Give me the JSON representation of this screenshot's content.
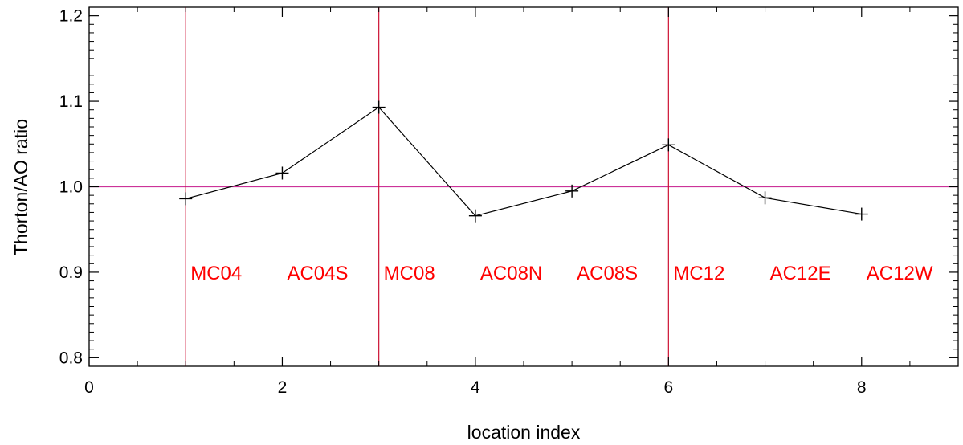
{
  "chart_data": {
    "type": "line",
    "title": "",
    "xlabel": "location index",
    "ylabel": "Thorton/AO ratio",
    "xlim": [
      0,
      9
    ],
    "ylim": [
      0.79,
      1.21
    ],
    "xticks": [
      0,
      2,
      4,
      6,
      8
    ],
    "xtick_labels": [
      "0",
      "2",
      "4",
      "6",
      "8"
    ],
    "yticks": [
      0.8,
      0.9,
      1.0,
      1.1,
      1.2
    ],
    "ytick_labels": [
      "0.8",
      "0.9",
      "1.0",
      "1.1",
      "1.2"
    ],
    "series": [
      {
        "x": [
          1,
          2,
          3,
          4,
          5,
          6,
          7,
          8
        ],
        "y": [
          0.986,
          1.016,
          1.093,
          0.966,
          0.995,
          1.049,
          0.987,
          0.968
        ],
        "color": "#000000",
        "marker": "plus"
      }
    ],
    "reference_line": {
      "y": 1.0,
      "color": "#cc3399"
    },
    "vertical_lines": {
      "x": [
        1,
        3,
        6
      ],
      "color": "#cc1133"
    },
    "annotations": [
      {
        "text": "MC04",
        "x": 1.05,
        "y": 0.9
      },
      {
        "text": "AC04S",
        "x": 2.05,
        "y": 0.9
      },
      {
        "text": "MC08",
        "x": 3.05,
        "y": 0.9
      },
      {
        "text": "AC08N",
        "x": 4.05,
        "y": 0.9
      },
      {
        "text": "AC08S",
        "x": 5.05,
        "y": 0.9
      },
      {
        "text": "MC12",
        "x": 6.05,
        "y": 0.9
      },
      {
        "text": "AC12E",
        "x": 7.05,
        "y": 0.9
      },
      {
        "text": "AC12W",
        "x": 8.05,
        "y": 0.9
      }
    ],
    "annotation_color": "#ff0000",
    "grid": false
  }
}
